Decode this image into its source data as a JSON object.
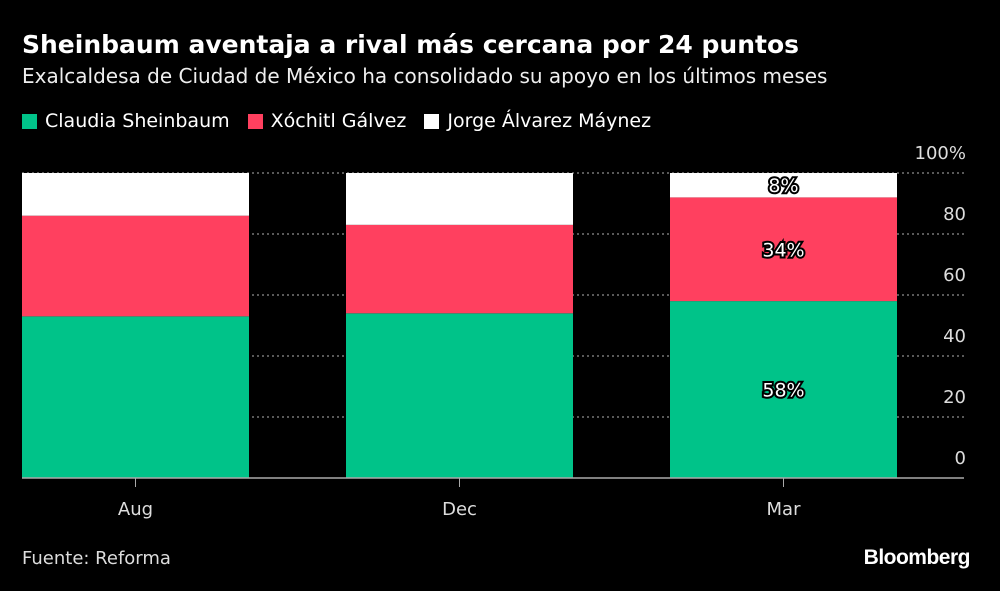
{
  "title": "Sheinbaum aventaja a rival más cercana por 24 puntos",
  "subtitle": "Exalcaldesa de Ciudad de México ha consolidado su apoyo en los últimos meses",
  "source": "Fuente: Reforma",
  "logo": "Bloomberg",
  "chart_data": {
    "type": "bar",
    "stacked": true,
    "categories": [
      "Aug",
      "Dec",
      "Mar"
    ],
    "series": [
      {
        "name": "Claudia Sheinbaum",
        "color": "#00c389",
        "values": [
          53,
          54,
          58
        ]
      },
      {
        "name": "Xóchitl Gálvez",
        "color": "#ff405f",
        "values": [
          33,
          29,
          34
        ]
      },
      {
        "name": "Jorge Álvarez Máynez",
        "color": "#ffffff",
        "values": [
          14,
          17,
          8
        ]
      }
    ],
    "data_labels": {
      "Mar": [
        "58%",
        "34%",
        "8%"
      ]
    },
    "ylim": [
      0,
      100
    ],
    "yticks": [
      0,
      20,
      40,
      60,
      80,
      100
    ],
    "ytick_labels": [
      "0",
      "20",
      "40",
      "60",
      "80",
      "100%"
    ],
    "grid": true,
    "legend": "top-left"
  }
}
